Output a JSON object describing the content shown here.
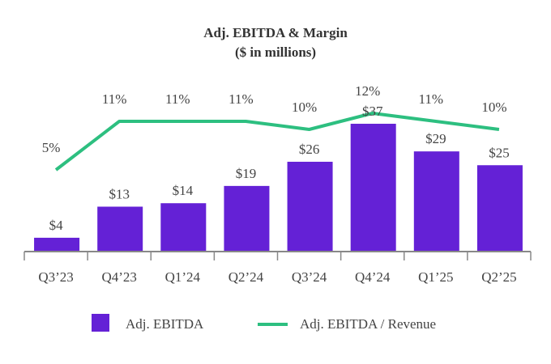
{
  "chart_data": {
    "type": "bar",
    "title": "Adj. EBITDA & Margin",
    "subtitle": "($ in millions)",
    "categories": [
      "Q3’23",
      "Q4’23",
      "Q1’24",
      "Q2’24",
      "Q3’24",
      "Q4’24",
      "Q1’25",
      "Q2’25"
    ],
    "series": [
      {
        "name": "Adj. EBITDA",
        "type": "bar",
        "values": [
          4,
          13,
          14,
          19,
          26,
          37,
          29,
          25
        ],
        "labels": [
          "$4",
          "$13",
          "$14",
          "$19",
          "$26",
          "$37",
          "$29",
          "$25"
        ],
        "color": "#6421d6"
      },
      {
        "name": "Adj. EBITDA / Revenue",
        "type": "line",
        "values": [
          5,
          11,
          11,
          11,
          10,
          12,
          11,
          10
        ],
        "labels": [
          "5%",
          "11%",
          "11%",
          "11%",
          "10%",
          "12%",
          "11%",
          "10%"
        ],
        "color": "#2dbf80"
      }
    ],
    "grid": false,
    "legend": "bottom"
  }
}
